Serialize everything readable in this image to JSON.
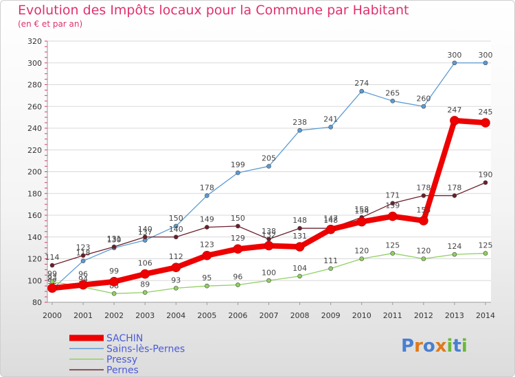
{
  "title": "Evolution des Impôts locaux pour la Commune par Habitant",
  "subtitle": "(en € et par an)",
  "logo_text": "Proxiti",
  "colors": {
    "title": "#e0306e",
    "sachin": "#ee0000",
    "sains": "#5b9bd5",
    "pressy": "#90d060",
    "pernes": "#6b1e2a",
    "grid": "#d8d8d8",
    "axis_tick": "#e0306e"
  },
  "chart_data": {
    "type": "line",
    "x": [
      2000,
      2001,
      2002,
      2003,
      2004,
      2005,
      2006,
      2007,
      2008,
      2009,
      2010,
      2011,
      2012,
      2013,
      2014
    ],
    "ylim": [
      80,
      320
    ],
    "yticks": [
      80,
      100,
      120,
      140,
      160,
      180,
      200,
      220,
      240,
      260,
      280,
      300,
      320
    ],
    "grid": true,
    "legend": "bottom-left",
    "series": [
      {
        "name": "Sains-lès-Pernes",
        "color": "#5b9bd5",
        "width": 1.3,
        "values": [
          92,
          118,
          130,
          137,
          150,
          178,
          199,
          205,
          238,
          241,
          274,
          265,
          260,
          300,
          300
        ]
      },
      {
        "name": "Pressy",
        "color": "#90d060",
        "width": 1.3,
        "values": [
          99,
          94,
          88,
          89,
          93,
          95,
          96,
          100,
          104,
          111,
          120,
          125,
          120,
          124,
          125
        ]
      },
      {
        "name": "Pernes",
        "color": "#6b1e2a",
        "width": 1.3,
        "values": [
          114,
          123,
          131,
          140,
          140,
          149,
          150,
          138,
          148,
          148,
          158,
          171,
          178,
          178,
          190
        ]
      },
      {
        "name": "SACHIN",
        "color": "#ee0000",
        "width": 8,
        "values": [
          93,
          96,
          99,
          106,
          112,
          123,
          129,
          132,
          131,
          147,
          154,
          159,
          155,
          247,
          245
        ]
      }
    ]
  }
}
